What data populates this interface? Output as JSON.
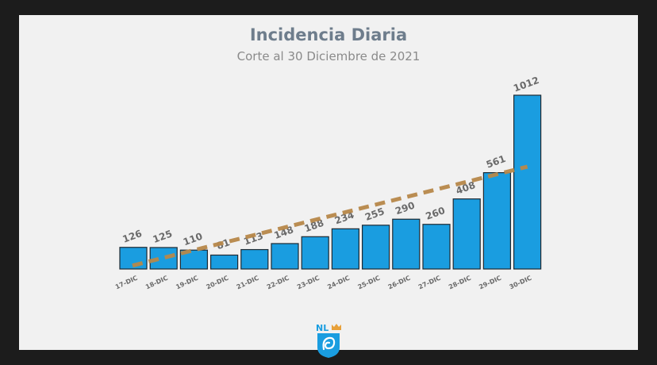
{
  "chart_data": {
    "type": "bar",
    "title": "Incidencia Diaria",
    "subtitle": "Corte al 30 Diciembre de 2021",
    "categories": [
      "17-DIC",
      "18-DIC",
      "19-DIC",
      "20-DIC",
      "21-DIC",
      "22-DIC",
      "23-DIC",
      "24-DIC",
      "25-DIC",
      "26-DIC",
      "27-DIC",
      "28-DIC",
      "29-DIC",
      "30-DIC"
    ],
    "values": [
      126,
      125,
      110,
      81,
      113,
      148,
      188,
      234,
      255,
      290,
      260,
      408,
      561,
      1012
    ],
    "ylim": [
      0,
      1012
    ],
    "bar_color": "#1a9de0",
    "trendline": {
      "style": "dashed",
      "color": "#b8884a",
      "start": 20,
      "end": 596
    },
    "grid": false,
    "legend": "none"
  },
  "logo": {
    "text": "NL",
    "color": "#1a9de0",
    "crown_color": "#e8a13a"
  }
}
